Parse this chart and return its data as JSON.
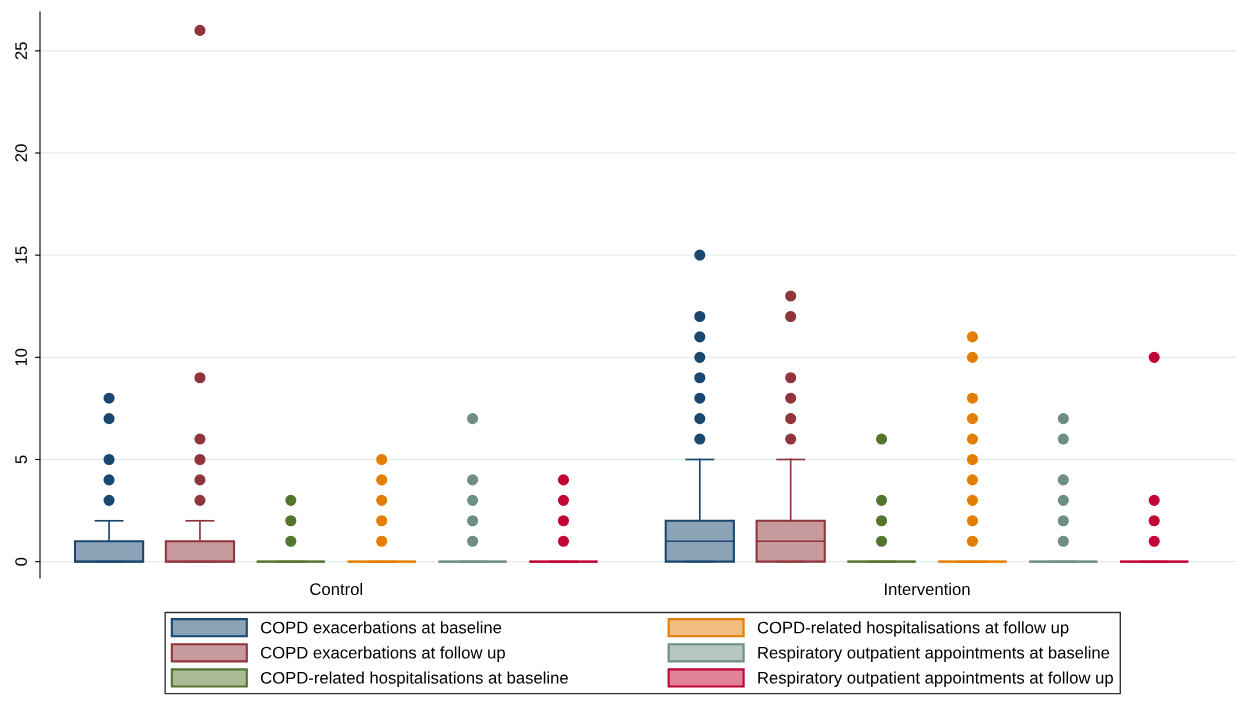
{
  "chart_data": {
    "type": "box",
    "categories": [
      "Control",
      "Intervention"
    ],
    "ylim": [
      -0.8,
      26.9
    ],
    "yticks": [
      0,
      5,
      10,
      15,
      20,
      25
    ],
    "grid": "y",
    "legend": "bottom",
    "series": [
      {
        "name": "COPD exacerbations at baseline",
        "color": "#1a476f",
        "boxes": [
          {
            "low": 0,
            "q1": 0,
            "median": 0,
            "q3": 1,
            "high": 2,
            "outliers": [
              3,
              4,
              5,
              7,
              8
            ]
          },
          {
            "low": 0,
            "q1": 0,
            "median": 1,
            "q3": 2,
            "high": 5,
            "outliers": [
              6,
              7,
              8,
              9,
              10,
              11,
              12,
              15
            ]
          }
        ]
      },
      {
        "name": "COPD exacerbations at follow up",
        "color": "#90353b",
        "boxes": [
          {
            "low": 0,
            "q1": 0,
            "median": 0,
            "q3": 1,
            "high": 2,
            "outliers": [
              3,
              4,
              5,
              6,
              9,
              26
            ]
          },
          {
            "low": 0,
            "q1": 0,
            "median": 1,
            "q3": 2,
            "high": 5,
            "outliers": [
              6,
              7,
              8,
              9,
              12,
              13
            ]
          }
        ]
      },
      {
        "name": "COPD-related hospitalisations at baseline",
        "color": "#55752f",
        "boxes": [
          {
            "low": 0,
            "q1": 0,
            "median": 0,
            "q3": 0,
            "high": 0,
            "outliers": [
              1,
              2,
              3
            ]
          },
          {
            "low": 0,
            "q1": 0,
            "median": 0,
            "q3": 0,
            "high": 0,
            "outliers": [
              1,
              2,
              3,
              6
            ]
          }
        ]
      },
      {
        "name": "COPD-related hospitalisations at follow up",
        "color": "#e37e00",
        "boxes": [
          {
            "low": 0,
            "q1": 0,
            "median": 0,
            "q3": 0,
            "high": 0,
            "outliers": [
              1,
              2,
              3,
              4,
              5
            ]
          },
          {
            "low": 0,
            "q1": 0,
            "median": 0,
            "q3": 0,
            "high": 0,
            "outliers": [
              1,
              2,
              3,
              4,
              5,
              6,
              7,
              8,
              10,
              11
            ]
          }
        ]
      },
      {
        "name": "Respiratory outpatient appointments at baseline",
        "color": "#6e8e84",
        "boxes": [
          {
            "low": 0,
            "q1": 0,
            "median": 0,
            "q3": 0,
            "high": 0,
            "outliers": [
              1,
              2,
              3,
              4,
              7
            ]
          },
          {
            "low": 0,
            "q1": 0,
            "median": 0,
            "q3": 0,
            "high": 0,
            "outliers": [
              1,
              2,
              3,
              4,
              6,
              7
            ]
          }
        ]
      },
      {
        "name": "Respiratory outpatient appointments at follow up",
        "color": "#c10534",
        "boxes": [
          {
            "low": 0,
            "q1": 0,
            "median": 0,
            "q3": 0,
            "high": 0,
            "outliers": [
              1,
              2,
              3,
              4
            ]
          },
          {
            "low": 0,
            "q1": 0,
            "median": 0,
            "q3": 0,
            "high": 0,
            "outliers": [
              1,
              2,
              3,
              10
            ]
          }
        ]
      }
    ]
  }
}
